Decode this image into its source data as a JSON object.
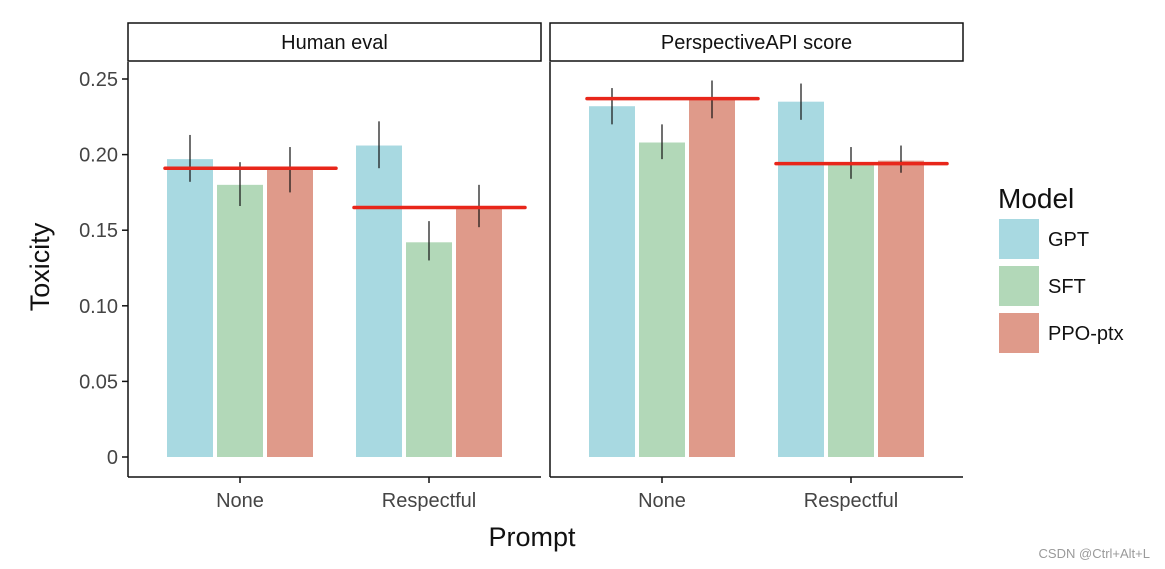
{
  "chart_data": {
    "type": "bar",
    "facets": [
      "Human eval",
      "PerspectiveAPI score"
    ],
    "categories": [
      "None",
      "Respectful"
    ],
    "xlabel": "Prompt",
    "ylabel": "Toxicity",
    "ylim": [
      0,
      0.25
    ],
    "yticks": [
      0,
      0.05,
      0.1,
      0.15,
      0.2,
      0.25
    ],
    "ytick_labels": [
      "0",
      "0.05",
      "0.10",
      "0.15",
      "0.20",
      "0.25"
    ],
    "legend": {
      "title": "Model",
      "position": "right"
    },
    "series": [
      {
        "name": "GPT",
        "color": "#a8d9e1",
        "values": {
          "Human eval": [
            0.197,
            0.206
          ],
          "PerspectiveAPI score": [
            0.232,
            0.235
          ]
        },
        "err_low": {
          "Human eval": [
            0.182,
            0.191
          ],
          "PerspectiveAPI score": [
            0.22,
            0.223
          ]
        },
        "err_high": {
          "Human eval": [
            0.213,
            0.222
          ],
          "PerspectiveAPI score": [
            0.244,
            0.247
          ]
        }
      },
      {
        "name": "SFT",
        "color": "#b2d8b8",
        "values": {
          "Human eval": [
            0.18,
            0.142
          ],
          "PerspectiveAPI score": [
            0.208,
            0.194
          ]
        },
        "err_low": {
          "Human eval": [
            0.166,
            0.13
          ],
          "PerspectiveAPI score": [
            0.197,
            0.184
          ]
        },
        "err_high": {
          "Human eval": [
            0.195,
            0.156
          ],
          "PerspectiveAPI score": [
            0.22,
            0.205
          ]
        }
      },
      {
        "name": "PPO-ptx",
        "color": "#df9a8a",
        "values": {
          "Human eval": [
            0.19,
            0.165
          ],
          "PerspectiveAPI score": [
            0.237,
            0.196
          ]
        },
        "err_low": {
          "Human eval": [
            0.175,
            0.152
          ],
          "PerspectiveAPI score": [
            0.224,
            0.188
          ]
        },
        "err_high": {
          "Human eval": [
            0.205,
            0.18
          ],
          "PerspectiveAPI score": [
            0.249,
            0.206
          ]
        }
      }
    ],
    "reference_lines": {
      "color": "#e8261a",
      "values": {
        "Human eval": [
          0.191,
          0.165
        ],
        "PerspectiveAPI score": [
          0.237,
          0.194
        ]
      }
    }
  },
  "watermark": "CSDN @Ctrl+Alt+L"
}
